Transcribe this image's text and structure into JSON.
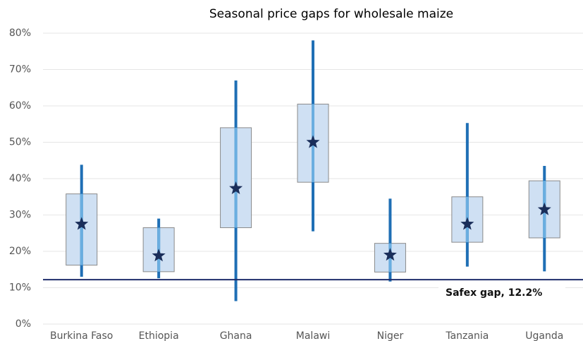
{
  "chart_data": {
    "type": "box",
    "title": "Seasonal price gaps for wholesale maize",
    "categories": [
      "Burkina Faso",
      "Ethiopia",
      "Ghana",
      "Malawi",
      "Niger",
      "Tanzania",
      "Uganda"
    ],
    "min": [
      13,
      12.6,
      6.3,
      25.5,
      11.7,
      15.8,
      14.5
    ],
    "q1": [
      16.2,
      14.4,
      26.5,
      39,
      14.3,
      22.5,
      23.7
    ],
    "mean": [
      27.5,
      18.8,
      37.3,
      50,
      19,
      27.5,
      31.5
    ],
    "q3": [
      35.8,
      26.5,
      54,
      60.5,
      22.2,
      35,
      39.4
    ],
    "max": [
      43.8,
      29,
      67,
      78,
      34.5,
      55.3,
      43.5
    ],
    "box_color": "#cfe0f3",
    "whisker_color": "#1f6fb5",
    "mean_color": "#1a2e5a",
    "reference": {
      "value": 12.2,
      "label": "Safex gap, 12.2%",
      "color": "#1f2d6b"
    },
    "ylim": [
      0,
      80
    ],
    "yticks": [
      {
        "value": 0,
        "label": "0%"
      },
      {
        "value": 10,
        "label": "10%"
      },
      {
        "value": 20,
        "label": "20%"
      },
      {
        "value": 30,
        "label": "30%"
      },
      {
        "value": 40,
        "label": "40%"
      },
      {
        "value": 50,
        "label": "50%"
      },
      {
        "value": 60,
        "label": "60%"
      },
      {
        "value": 70,
        "label": "70%"
      },
      {
        "value": 80,
        "label": "80%"
      }
    ],
    "grid": true
  }
}
